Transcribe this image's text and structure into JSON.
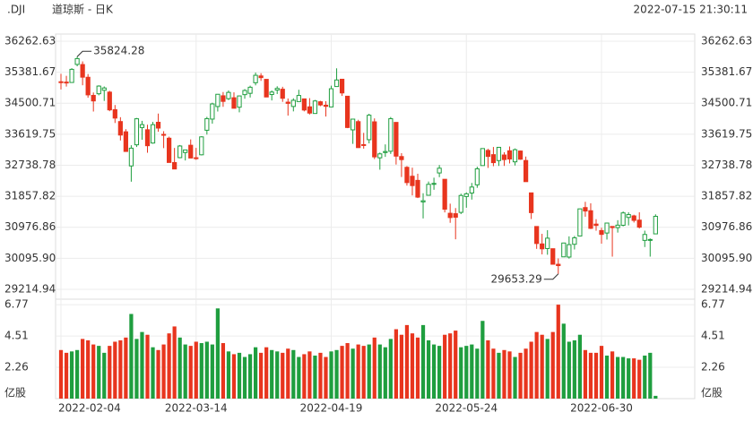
{
  "chart_data": {
    "type": "candlestick",
    "symbol": ".DJI",
    "title": "道琼斯 - 日K",
    "timestamp": "2022-07-15 21:30:11",
    "up_color": "#1f9e3f",
    "down_color": "#e8351e",
    "categories": [
      "2022-02-04",
      null,
      null,
      null,
      null,
      null,
      null,
      null,
      null,
      null,
      null,
      null,
      null,
      null,
      null,
      null,
      null,
      null,
      null,
      null,
      null,
      null,
      null,
      null,
      null,
      "2022-03-14",
      null,
      null,
      null,
      null,
      null,
      null,
      null,
      null,
      null,
      null,
      null,
      null,
      null,
      null,
      null,
      null,
      null,
      null,
      null,
      null,
      null,
      null,
      null,
      null,
      "2022-04-19",
      null,
      null,
      null,
      null,
      null,
      null,
      null,
      null,
      null,
      null,
      null,
      null,
      null,
      null,
      null,
      null,
      null,
      null,
      null,
      null,
      null,
      null,
      null,
      null,
      "2022-05-24",
      null,
      null,
      null,
      null,
      null,
      null,
      null,
      null,
      null,
      null,
      null,
      null,
      null,
      null,
      null,
      null,
      null,
      null,
      null,
      null,
      null,
      null,
      null,
      null,
      "2022-06-30",
      null,
      null,
      null,
      null,
      null,
      null,
      null,
      null,
      null,
      null
    ],
    "open": [
      35111,
      35101,
      35090,
      35603,
      35600,
      35238,
      34723,
      34770,
      34868,
      34816,
      34317,
      33980,
      33689,
      32720,
      33320,
      33810,
      33747,
      33370,
      33960,
      33616,
      33507,
      32816,
      32955,
      33100,
      33307,
      32952,
      33036,
      33733,
      34050,
      34407,
      34712,
      34630,
      34656,
      34388,
      34745,
      34782,
      35083,
      35276,
      35179,
      34748,
      34875,
      34899,
      34531,
      34409,
      34548,
      34624,
      34398,
      34210,
      34542,
      34445,
      34395,
      34975,
      35182,
      34700,
      33744,
      33978,
      33325,
      33465,
      33972,
      32950,
      33100,
      33136,
      33956,
      32986,
      32680,
      32427,
      32309,
      31698,
      31886,
      32197,
      32520,
      32340,
      31375,
      31363,
      31400,
      31851,
      31950,
      32183,
      32730,
      33160,
      33040,
      32872,
      33030,
      33150,
      32836,
      33143,
      32874,
      31954,
      30999,
      30504,
      30373,
      30368,
      29926,
      30137,
      30131,
      30494,
      30729,
      31537,
      31447,
      31067,
      30884,
      30814,
      31000,
      30967,
      31034,
      31256,
      31300,
      31180,
      30605,
      30606,
      30790
    ],
    "high": [
      35336,
      35279,
      35497,
      35824.28,
      35689,
      35330,
      34805,
      35010,
      34977,
      34852,
      34450,
      34104,
      33764,
      33308,
      34082,
      34000,
      33890,
      33970,
      34207,
      33706,
      33551,
      33230,
      33314,
      33180,
      33473,
      33232,
      33563,
      34114,
      34515,
      34757,
      34819,
      34864,
      34810,
      34718,
      34902,
      35000,
      35372,
      35354,
      35179,
      34863,
      34983,
      34968,
      34636,
      34641,
      34883,
      34624,
      34645,
      34594,
      34568,
      34560,
      35000,
      35492,
      35183,
      34700,
      34049,
      34030,
      33659,
      34201,
      34070,
      33100,
      33331,
      34110,
      33956,
      33082,
      32715,
      32670,
      32498,
      31944,
      32276,
      32386,
      32746,
      32340,
      31648,
      31522,
      31932,
      31967,
      32237,
      32698,
      33212,
      33207,
      33258,
      33248,
      33108,
      33272,
      33216,
      33159,
      32986,
      31954,
      30999,
      30791,
      30894,
      30368,
      30092,
      30539,
      30719,
      30730,
      31500,
      31700,
      31658,
      31207,
      30965,
      31109,
      31000,
      31178,
      31426,
      31405,
      31333,
      31402,
      30881,
      30660,
      31345
    ],
    "low": [
      34892,
      34974,
      35080,
      35550,
      35011,
      34656,
      34265,
      34726,
      34566,
      34274,
      33939,
      33442,
      33119,
      32272,
      33258,
      33463,
      33094,
      33351,
      33690,
      33225,
      32817,
      32632,
      32938,
      32875,
      32944,
      32892,
      33019,
      33610,
      33919,
      34265,
      34399,
      34591,
      34358,
      34242,
      34628,
      34663,
      35009,
      35136,
      34678,
      34580,
      34762,
      34540,
      34149,
      34269,
      34548,
      34270,
      34180,
      34210,
      34418,
      34123,
      34395,
      34975,
      34708,
      33793,
      33346,
      33231,
      33210,
      33360,
      32914,
      32613,
      32977,
      33060,
      32759,
      32405,
      32161,
      31882,
      31807,
      31228,
      31886,
      32042,
      32400,
      31399,
      31104,
      30636,
      31351,
      31532,
      31763,
      32098,
      32730,
      32663,
      32712,
      32720,
      32720,
      32790,
      32731,
      32893,
      32269,
      31211,
      30364,
      30207,
      30197,
      29914,
      29653.29,
      30137,
      30087,
      30347,
      30729,
      31277,
      30927,
      30880,
      30511,
      30628,
      30143,
      30826,
      31004,
      31030,
      31112,
      30943,
      30416,
      30143,
      30790
    ],
    "close": [
      35089,
      35091,
      35463,
      35768,
      35241,
      34738,
      34566,
      34988,
      34934,
      34312,
      34079,
      33597,
      33131,
      33224,
      34059,
      33893,
      33294,
      33891,
      33795,
      33615,
      32818,
      32633,
      33286,
      33174,
      32944,
      32945,
      33545,
      34063,
      34481,
      34755,
      34553,
      34808,
      34358,
      34708,
      34862,
      34955,
      35294,
      35228,
      34678,
      34818,
      34922,
      34641,
      34497,
      34584,
      34721,
      34308,
      34221,
      34565,
      34452,
      34412,
      34912,
      35161,
      34793,
      33811,
      34049,
      33240,
      33302,
      34160,
      32977,
      33062,
      33129,
      34061,
      32998,
      32899,
      32246,
      32161,
      31834,
      31730,
      32197,
      32223,
      32655,
      31490,
      31253,
      31262,
      31880,
      31928,
      32120,
      32637,
      33213,
      32990,
      32813,
      33248,
      32900,
      32916,
      33180,
      32910,
      32273,
      31393,
      30516,
      30365,
      30668,
      29927,
      29888,
      30530,
      30484,
      30677,
      31500,
      31439,
      30947,
      31029,
      30775,
      31097,
      30968,
      31037,
      31385,
      31338,
      31173,
      30981,
      30773,
      30630,
      31288
    ],
    "volume": [
      3.5,
      3.3,
      3.4,
      3.5,
      4.3,
      4.2,
      3.9,
      3.8,
      3.3,
      3.8,
      4.1,
      4.2,
      4.4,
      6.1,
      4.3,
      4.8,
      4.6,
      3.7,
      3.5,
      3.9,
      4.7,
      5.2,
      4.4,
      3.9,
      3.8,
      4.1,
      4.0,
      4.1,
      3.9,
      6.5,
      4.0,
      3.4,
      3.2,
      3.3,
      3.0,
      3.2,
      3.7,
      3.3,
      3.7,
      3.5,
      3.4,
      3.3,
      3.6,
      3.5,
      3.0,
      3.2,
      3.4,
      3.1,
      3.3,
      3.0,
      3.4,
      3.5,
      3.8,
      4.0,
      3.6,
      3.9,
      3.8,
      3.9,
      4.4,
      3.9,
      3.7,
      4.3,
      5.0,
      4.6,
      5.3,
      4.7,
      4.4,
      5.3,
      4.2,
      3.9,
      3.8,
      4.6,
      4.7,
      4.9,
      3.7,
      3.8,
      3.9,
      3.6,
      5.6,
      4.2,
      3.6,
      3.3,
      3.5,
      3.4,
      3.0,
      3.3,
      3.6,
      4.1,
      4.8,
      4.6,
      4.3,
      4.8,
      6.77,
      5.4,
      4.1,
      4.2,
      4.6,
      3.5,
      3.3,
      3.3,
      3.8,
      3.1,
      3.4,
      3.0,
      3.0,
      2.9,
      2.9,
      2.8,
      3.1,
      3.3,
      0.2
    ],
    "ylim": [
      28960,
      36466
    ],
    "yticks": [
      36262.63,
      35381.67,
      34500.71,
      33619.75,
      32738.78,
      31857.82,
      30976.86,
      {
        "value": 30095.9,
        "label": "30095.90"
      },
      29214.94
    ],
    "volume_ylim": [
      0,
      7.1
    ],
    "volume_yticks": [
      6.77,
      4.51,
      2.26,
      {
        "value": 0,
        "label": "亿股"
      }
    ],
    "grid": true
  }
}
